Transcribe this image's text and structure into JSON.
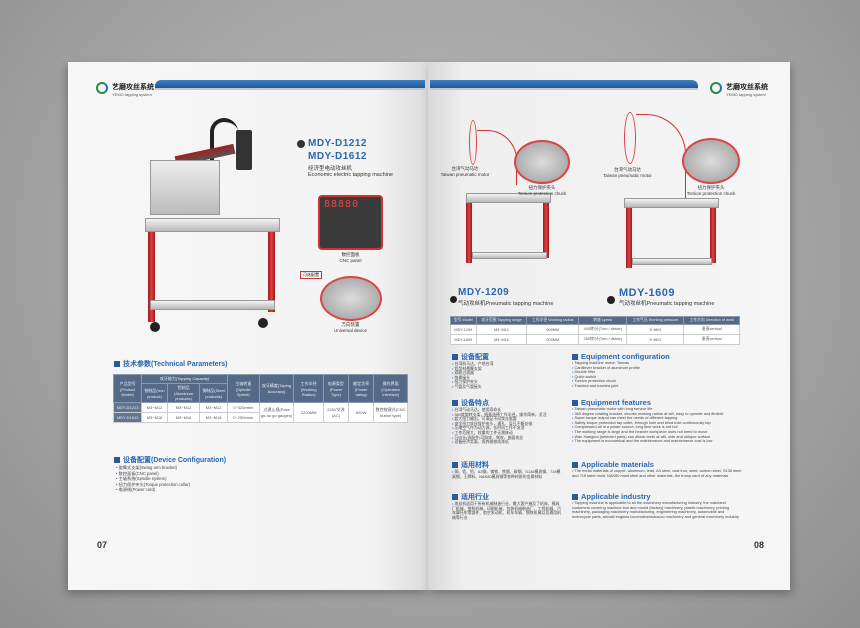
{
  "brand": {
    "cn": "艺磨攻丝系统",
    "en": "YEMO tapping system"
  },
  "left": {
    "models": [
      "MDY-D1212",
      "MDY-D1612"
    ],
    "title_cn": "经济型电动攻丝机",
    "title_en": "Economic electric tapping machine",
    "cnc_panel": {
      "cn": "数控面板",
      "en": "CNC panel",
      "display": "88880"
    },
    "universal": {
      "tag": "可选配置",
      "cn": "万向装置",
      "en": "Universal device"
    },
    "tech_heading": "技术参数(Technical Parameters)",
    "table": {
      "headers": {
        "model": "产品型号(Product Model)",
        "capacity": "攻牙能力(Tapping Capacity)",
        "iron": "铁制品(Iron product)",
        "aluminum": "铝制品(Aluminum products)",
        "steel": "钢制品(Steel products)",
        "speed": "主轴转速(Spindle Speed)",
        "accuracy": "攻牙精度(Taping Accuracy)",
        "radius": "工作半径(Working Radius)",
        "power": "电源类型(Power Type)",
        "rating": "额定功率(Power rating)",
        "interface": "操作界面(Operation Interface)"
      },
      "rows": [
        {
          "model": "MDY-D1212",
          "iron": "M3~M12",
          "aluminum": "M3~M12",
          "steel": "M3~M12",
          "speed": "0~320r/min"
        },
        {
          "model": "MDY-D1612",
          "iron": "M3~M16",
          "aluminum": "M3~M16",
          "steel": "M3~M16",
          "speed": "0~250r/min"
        }
      ],
      "accuracy": "过通止规(Pass go-no go gauges)",
      "radius": "1200MM",
      "power": "220V交流(AC)",
      "rating": "600W",
      "interface": "数控按键式(CNC button type)"
    },
    "config_heading": "设备配置(Device Configuration)",
    "config_items": [
      "旋臂式支架(Swing arm bracket)",
      "数控面板(CNC panel)",
      "主轴系统(Spindle system)",
      "扭力保护夹头(Torque protection collar)",
      "电源线(Power cord)"
    ],
    "page_number": "07"
  },
  "right": {
    "callouts": {
      "motor_cn": "台湾气动马达",
      "motor_en": "Taiwan pneumatic motor",
      "chuck_cn": "扭力保护夹头",
      "chuck_en": "Torsion protection chuck"
    },
    "models": [
      {
        "code": "MDY-1209",
        "title": "气动攻丝机Pneumatic tapping machine"
      },
      {
        "code": "MDY-1609",
        "title": "气动攻丝机Pneumatic tapping machine"
      }
    ],
    "table": {
      "headers": [
        "型号 Model",
        "攻牙范围 Tapping range",
        "工作半径 Working radius",
        "转速 speed",
        "工作气压 Working pressure",
        "工作方向 Direction of work"
      ],
      "rows": [
        [
          "MDY-1209",
          "M3~M12",
          "900MM",
          "400转/分(Turn / divide)",
          "5~8KG",
          "垂直vertical"
        ],
        [
          "MDY-1609",
          "M3~M16",
          "900MM",
          "250转/分(Turn / divide)",
          "5~8KG",
          "垂直vertical"
        ]
      ]
    },
    "cn_sections": [
      {
        "heading": "设备配置",
        "items": [
          "台湾机马达，产地台湾",
          "铝型材悬臂支架",
          "双联过滤器",
          "快换接头",
          "扭力保护夹头",
          "气管及气管接头"
        ]
      },
      {
        "heading": "设备特点",
        "items": [
          "台湾气动马达，使用寿命长",
          "360度旋转支架，随意选择工作半径，操作简单，灵活",
          "超大扭力输出，可满足不同攻丝需要",
          "安全扭力攻丝保护夹头，通孔、盲孔不断丝锥",
          "压缩空气作为动力源，长时间工作不发烫",
          "工作范围大，较重的工件无需移动",
          "万向头(选配件)可斜攻，侧攻，曲面攻丝",
          "设备经济实惠，保养维修成本低"
        ]
      },
      {
        "heading": "适用材料",
        "items": [
          "铜、铝、铅、A3钢、铸铁、铁钢、碳钢、S136模具钢、718模具钢、王牌料、NAK80模具钢等各种材质的金属材料"
        ]
      },
      {
        "heading": "适用行业",
        "items": [
          "攻丝机适用于所有机械制造行业，最大客户遍及了机床、模具厂机械、塑胶机械、印刷机械、包装机械制造厂、工程机械、汽车摩托车零部件、航空发动机、机车车辆、钢铁机械以及通用机械等行业"
        ]
      }
    ],
    "en_sections": [
      {
        "heading": "Equipment configuration",
        "items": [
          "Tapping machine motor: Taiwan",
          "Cantilever bracket of aluminum profile",
          "Double filter",
          "Quick switch",
          "Torsion protection chuck",
          "Trachea and trachea joint"
        ]
      },
      {
        "heading": "Equipment features",
        "items": [
          "Taiwan pneumatic motor with long service life",
          "360 degree rotating bracket, choose working radius at will, easy to operate and flexible",
          "Super torque output can meet the needs of different tapping",
          "Safety torque protection tap collet, through hole and blind hole continuously tap",
          "Compressed air is a power source, long time work is not hot",
          "The working range is large and the heavier workpiece does not need to move",
          "Wan Xiangtou (selected parts) can attack teeth at will, side and oblique surface",
          "The equipment is economical and the maintenance and maintenance cost is low"
        ]
      },
      {
        "heading": "Applicable materials",
        "items": [
          "The metal materials of copper, aluminum, lead, A3 steel, cast iron, steel, carbon steel, S136 steel and 718 steel mold, NAK80 mold steel and other materials, the trump card of any materials"
        ]
      },
      {
        "heading": "Applicable industry",
        "items": [
          "Tapping machine is applicable to all the machinery manufacturing industry, the mainland customers covering machine tool and mould (factory) machinery, plastic machinery, printing machinery, packaging machinery manufacturing, engineering machinery, automobile and motorcycle parts, aircraft engines locomotivestobacco machinery and general machinery industry"
        ]
      }
    ],
    "page_number": "08"
  },
  "colors": {
    "accent_blue": "#2b67b0",
    "leg_red": "#d03030",
    "header_band": "#2a64a8"
  }
}
